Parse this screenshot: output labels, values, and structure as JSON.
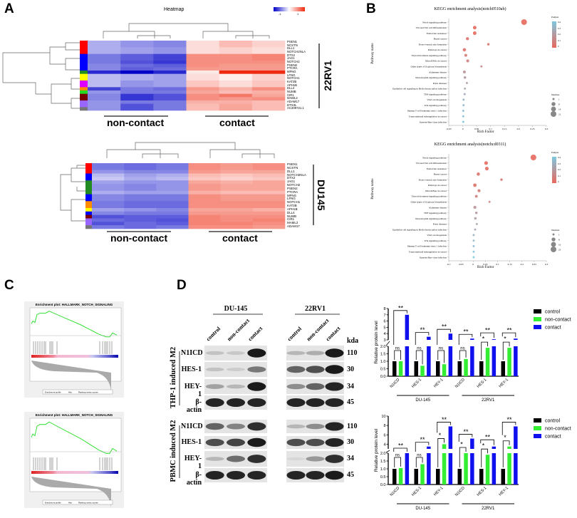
{
  "panel_labels": {
    "a": "A",
    "b": "B",
    "c": "C",
    "d": "D"
  },
  "heatmap_legend": {
    "title": "Heatmap",
    "low": "-1",
    "high": "1",
    "low_color": "#0000c8",
    "mid_color": "#ffffff",
    "high_color": "#ee2a10"
  },
  "gsea": {
    "plots": [
      {
        "title": "Enrichment plot: HALLMARK_NOTCH_SIGNALING",
        "legend": [
          "Enrichment profile",
          "Hits",
          "Ranking metric scores"
        ]
      },
      {
        "title": "Enrichment plot: HALLMARK_NOTCH_SIGNALING",
        "legend": [
          "Enrichment profile",
          "Hits",
          "Ranking metric scores"
        ]
      }
    ],
    "curve_color": "#22dd22"
  },
  "western": {
    "cell_lines": [
      "DU-145",
      "22RV1"
    ],
    "lanes": [
      "control",
      "non-contact",
      "contact"
    ],
    "kda_label": "kda",
    "blocks": [
      {
        "label": "THP-1 induced M2",
        "proteins": [
          "N1ICD",
          "HES-1",
          "HEY-1",
          "β-actin"
        ],
        "kda": [
          "110",
          "30",
          "34",
          "45"
        ],
        "band_intensity": [
          [
            0.15,
            0.12,
            0.95,
            0.2,
            0.25,
            0.95
          ],
          [
            0.15,
            0.1,
            0.5,
            0.6,
            0.7,
            0.95
          ],
          [
            0.3,
            0.2,
            0.95,
            0.4,
            0.6,
            0.9
          ],
          [
            0.9,
            0.9,
            0.9,
            0.9,
            0.9,
            0.9
          ]
        ]
      },
      {
        "label": "PBMC induced M2",
        "proteins": [
          "N1ICD",
          "HES-1",
          "HEY-1",
          "β-actin"
        ],
        "kda": [
          "110",
          "30",
          "34",
          "45"
        ],
        "band_intensity": [
          [
            0.6,
            0.45,
            0.85,
            0.2,
            0.4,
            0.9
          ],
          [
            0.7,
            0.75,
            0.95,
            0.7,
            0.7,
            0.9
          ],
          [
            0.2,
            0.55,
            0.85,
            0.05,
            0.35,
            0.85
          ],
          [
            0.9,
            0.9,
            0.9,
            0.9,
            0.9,
            0.95
          ]
        ]
      }
    ]
  },
  "chart_data": [
    {
      "type": "heatmap",
      "title": "Heatmap",
      "cell_line": "22RV1",
      "group_labels": [
        "non-contact",
        "contact"
      ],
      "genes": [
        "PSEN1",
        "NCSTN",
        "DLL1",
        "NOTCH2NLA",
        "DTX2",
        "JAG1",
        "NOTCH2",
        "PSEN2",
        "PTCRA",
        "MFNG",
        "LFNG",
        "NOTCH1",
        "KAT2B",
        "APH1B",
        "DLL4",
        "NUMB",
        "CIR1",
        "MAML2",
        "ADAM17",
        "DTX3L",
        "AC209721.1"
      ],
      "cluster_colors": [
        "#ff0000",
        "#ff0000",
        "#ff0000",
        "#ff0000",
        "#0000ff",
        "#0000ff",
        "#0000ff",
        "#0000ff",
        "#0000ff",
        "#228b22",
        "#ffff00",
        "#ffff00",
        "#dd00ff",
        "#dd00ff",
        "#ff8c00",
        "#22dd22",
        "#7a0000",
        "#7a0000",
        "#9966ff",
        "#9966ff",
        "#777777"
      ],
      "values": [
        [
          -0.6,
          -0.8,
          -0.9,
          0.3,
          0.6,
          0.4
        ],
        [
          -0.6,
          -0.8,
          -0.9,
          0.3,
          0.6,
          0.4
        ],
        [
          -0.6,
          -0.7,
          -0.8,
          0.3,
          0.4,
          0.3
        ],
        [
          -0.6,
          -0.7,
          -0.8,
          0.3,
          0.4,
          0.3
        ],
        [
          -1.0,
          -1.2,
          -1.4,
          1.0,
          1.0,
          1.1
        ],
        [
          -1.0,
          -1.2,
          -1.4,
          1.0,
          1.0,
          1.1
        ],
        [
          -1.0,
          -1.3,
          -1.5,
          1.0,
          1.0,
          1.0
        ],
        [
          -0.9,
          -1.1,
          -1.2,
          1.0,
          0.9,
          0.9
        ],
        [
          -0.9,
          -1.2,
          -1.1,
          0.9,
          0.9,
          0.9
        ],
        [
          -1.6,
          -1.9,
          -1.6,
          0.2,
          1.9,
          1.9
        ],
        [
          -0.5,
          -0.6,
          -0.7,
          0.3,
          0.15,
          0.4
        ],
        [
          -0.5,
          -0.6,
          -0.7,
          0.3,
          0.15,
          0.4
        ],
        [
          -0.5,
          -0.8,
          -0.7,
          0.5,
          0.3,
          0.5
        ],
        [
          -0.5,
          -0.8,
          -0.7,
          0.5,
          0.3,
          0.5
        ],
        [
          -1.4,
          -1.0,
          -1.1,
          0.9,
          0.7,
          1.0
        ],
        [
          -0.8,
          -1.0,
          -1.0,
          0.8,
          0.6,
          0.7
        ],
        [
          -0.9,
          -1.5,
          -1.3,
          1.0,
          1.2,
          0.8
        ],
        [
          -0.9,
          -1.5,
          -1.3,
          1.0,
          0.9,
          1.0
        ],
        [
          -0.8,
          -1.0,
          -1.0,
          0.7,
          0.7,
          0.6
        ],
        [
          -0.8,
          -1.3,
          -1.0,
          0.6,
          0.8,
          0.6
        ],
        [
          -0.8,
          -1.3,
          -1.0,
          0.6,
          0.8,
          0.6
        ]
      ]
    },
    {
      "type": "heatmap",
      "cell_line": "DU145",
      "group_labels": [
        "non-contact",
        "contact"
      ],
      "genes": [
        "PSEN1",
        "NCSTN",
        "DLL1",
        "NOTCH2NLA",
        "DTX2",
        "JAG1",
        "NOTCH2",
        "PSEN2",
        "PTCRA",
        "MFNG",
        "LFNG",
        "NOTCH1",
        "KAT2B",
        "APH1B",
        "DLL4",
        "NUMB",
        "CIR1",
        "MAML2",
        "ADAM17"
      ],
      "cluster_colors": [
        "#ff0000",
        "#ff0000",
        "#ff0000",
        "#0000ff",
        "#0000ff",
        "#228b22",
        "#228b22",
        "#228b22",
        "#228b22",
        "#0000ff",
        "#0000ff",
        "#ff8c00",
        "#ff8c00",
        "#ffff00",
        "#0000ff",
        "#7a0000",
        "#9966ff",
        "#9966ff",
        "#777777"
      ],
      "values": [
        [
          -1.0,
          -1.1,
          -1.0,
          1.0,
          0.9,
          1.0
        ],
        [
          -1.0,
          -1.1,
          -1.0,
          1.0,
          0.9,
          1.0
        ],
        [
          -0.8,
          -0.9,
          -0.9,
          0.9,
          0.8,
          0.8
        ],
        [
          -0.5,
          -0.7,
          -0.6,
          0.6,
          0.5,
          0.6
        ],
        [
          -0.4,
          -0.6,
          -0.5,
          0.5,
          0.4,
          0.5
        ],
        [
          -0.7,
          -0.8,
          -0.8,
          0.8,
          0.7,
          0.8
        ],
        [
          -0.8,
          -0.9,
          -0.8,
          0.9,
          0.8,
          0.8
        ],
        [
          -0.8,
          -0.9,
          -0.8,
          0.9,
          0.8,
          0.8
        ],
        [
          -0.6,
          -0.7,
          -0.7,
          0.7,
          0.6,
          0.6
        ],
        [
          -0.9,
          -1.0,
          -1.0,
          1.0,
          0.9,
          0.9
        ],
        [
          -0.9,
          -1.0,
          -1.0,
          1.0,
          0.9,
          0.9
        ],
        [
          -1.0,
          -1.1,
          -1.1,
          1.0,
          1.0,
          1.0
        ],
        [
          -1.0,
          -1.1,
          -1.1,
          1.0,
          1.0,
          1.0
        ],
        [
          -0.7,
          -0.8,
          -0.9,
          0.8,
          0.8,
          0.7
        ],
        [
          -0.9,
          -1.0,
          -1.0,
          0.9,
          0.9,
          0.9
        ],
        [
          -1.3,
          -1.2,
          -1.2,
          1.1,
          1.0,
          1.0
        ],
        [
          -1.1,
          -1.2,
          -1.3,
          1.1,
          1.0,
          1.1
        ],
        [
          -1.3,
          -1.1,
          -1.2,
          1.1,
          1.1,
          1.0
        ],
        [
          -1.0,
          -1.1,
          -1.0,
          1.0,
          1.0,
          0.9
        ]
      ]
    },
    {
      "type": "scatter",
      "title": "KEGG enrichment analysis(notch0510ab)",
      "xlabel": "Rich Factor",
      "ylabel": "Pathway name",
      "xlim": [
        -0.05,
        0.3
      ],
      "xticks": [
        "-0.05",
        "0",
        "0.05",
        "0.1",
        "0.15",
        "0.2",
        "0.25",
        "0.3"
      ],
      "xtick_values": [
        -0.05,
        0,
        0.05,
        0.1,
        0.15,
        0.2,
        0.25,
        0.3
      ],
      "color_legend": {
        "title": "Padjust",
        "ticks": [
          "0.4",
          "0.3",
          "0.2",
          "0.1",
          "0"
        ],
        "low_color": "#e8685c",
        "high_color": "#7ec8e0"
      },
      "size_legend": {
        "title": "Number",
        "ticks": [
          "1",
          "8",
          "14",
          "21"
        ],
        "values": [
          1,
          8,
          14,
          21
        ]
      },
      "pathways": [
        "Notch signaling pathway",
        "Th1 and Th2 cell differentiation",
        "Endocrine resistance",
        "Breast cancer",
        "Dorso-ventral axis formation",
        "Pathways in cancer",
        "Thyroid hormone signaling pathway",
        "MicroRNAs in cancer",
        "Other types of O-glycan biosynthesis",
        "Alzheimer disease",
        "Neurotrophin signaling pathway",
        "Prion diseases",
        "Epithelial cell signaling in Helicobacter pylori infection",
        "TNF signaling pathway",
        "Viral carcinogenesis",
        "Wnt signaling pathway",
        "Human T-cell leukemia virus 1 infection",
        "Transcriptional misregulation in cancer",
        "Epstein-Barr virus infection"
      ],
      "rich_factor": [
        0.22,
        0.043,
        0.043,
        0.017,
        0.092,
        0.006,
        0.011,
        0.018,
        0.067,
        0.006,
        0.008,
        0.015,
        0.008,
        0.007,
        0.003,
        0.003,
        0.002,
        0.002,
        0.002
      ],
      "number": [
        21,
        6,
        6,
        4,
        2,
        5,
        3,
        3,
        1,
        3,
        2,
        1,
        1,
        1,
        1,
        1,
        1,
        1,
        1
      ],
      "padjust": [
        0,
        0.01,
        0.01,
        0.05,
        0.08,
        0.05,
        0.1,
        0.12,
        0.15,
        0.2,
        0.22,
        0.25,
        0.28,
        0.3,
        0.35,
        0.38,
        0.4,
        0.42,
        0.45
      ]
    },
    {
      "type": "scatter",
      "title": "KEGG enrichment analysis(notchcd0311)",
      "xlabel": "Rich Factor",
      "ylabel": "Pathway name",
      "xlim": [
        -0.1,
        0.3
      ],
      "xticks": [
        "-0.1",
        "-0.05",
        "0",
        "0.05",
        "0.1",
        "0.15",
        "0.2",
        "0.25",
        "0.3"
      ],
      "xtick_values": [
        -0.1,
        -0.05,
        0,
        0.05,
        0.1,
        0.15,
        0.2,
        0.25,
        0.3
      ],
      "color_legend": {
        "title": "Padjust",
        "ticks": [
          "0.4",
          "0.3",
          "0.2",
          "0.1",
          "0"
        ],
        "low_color": "#e8685c",
        "high_color": "#7ec8e0"
      },
      "size_legend": {
        "title": "Number",
        "ticks": [
          "1",
          "8",
          "16",
          "23"
        ],
        "values": [
          1,
          8,
          16,
          23
        ]
      },
      "pathways": [
        "Notch signaling pathway",
        "Th1 and Th2 cell differentiation",
        "Endocrine resistance",
        "Breast cancer",
        "Dorso-ventral axis formation",
        "Pathways in cancer",
        "MicroRNAs in cancer",
        "Thyroid hormone signaling pathway",
        "Other types of O-glycan biosynthesis",
        "Alzheimer disease",
        "TNF signaling pathway",
        "Neurotrophin signaling pathway",
        "Prion diseases",
        "Epithelial cell signaling in Helicobacter pylori infection",
        "Viral carcinogenesis",
        "Wnt signaling pathway",
        "Human T-cell leukemia virus 1 infection",
        "Transcriptional misregulation in cancer",
        "Epstein-Barr virus infection"
      ],
      "rich_factor": [
        0.247,
        0.053,
        0.056,
        0.021,
        0.116,
        0.007,
        0.024,
        0.013,
        0.067,
        0.007,
        0.013,
        0.009,
        0.015,
        0.008,
        0.002,
        0.002,
        0.002,
        0.002,
        0.002
      ],
      "number": [
        23,
        7,
        7,
        5,
        2,
        6,
        4,
        3,
        1,
        4,
        2,
        2,
        1,
        1,
        1,
        1,
        1,
        1,
        1
      ],
      "padjust": [
        0,
        0.01,
        0.01,
        0.05,
        0.08,
        0.05,
        0.1,
        0.12,
        0.15,
        0.2,
        0.22,
        0.25,
        0.28,
        0.3,
        0.35,
        0.38,
        0.4,
        0.42,
        0.45
      ]
    },
    {
      "type": "bar",
      "ylabel": "Relative protein level",
      "categories": [
        "N1ICD",
        "HES-1",
        "HEY-1",
        "N1ICD",
        "HES-1",
        "HEY-1"
      ],
      "category_groups": [
        {
          "label": "DU-145",
          "span": [
            0,
            2
          ]
        },
        {
          "label": "22RV1",
          "span": [
            3,
            5
          ]
        }
      ],
      "y_break": {
        "lower": [
          0,
          2.0
        ],
        "upper": [
          3,
          8
        ]
      },
      "yticks_lower": [
        "0.0",
        "0.5",
        "1.0",
        "1.5",
        "2.0"
      ],
      "yticks_upper": [
        "3",
        "4",
        "5",
        "6",
        "7",
        "8"
      ],
      "series": [
        {
          "name": "control",
          "color": "#000000",
          "values": [
            1,
            1,
            1,
            1,
            1,
            1
          ]
        },
        {
          "name": "non-contact",
          "color": "#33ee33",
          "values": [
            1.0,
            0.7,
            0.8,
            1.15,
            1.9,
            1.9
          ]
        },
        {
          "name": "contact",
          "color": "#1010ee",
          "values": [
            7.0,
            3.5,
            4.0,
            3.2,
            3.1,
            3.2
          ]
        }
      ],
      "significance": {
        "control_vs_noncontact": [
          "ns",
          "ns",
          "ns",
          "ns",
          "*",
          "*"
        ],
        "control_vs_contact": [
          "**",
          "**",
          "**",
          "**",
          "**",
          "**"
        ]
      },
      "legend_position": "right"
    },
    {
      "type": "bar",
      "ylabel": "Relative protein level",
      "categories": [
        "N1ICD",
        "HES-1",
        "HEY-1",
        "N1ICD",
        "HES-1",
        "HEY-1"
      ],
      "category_groups": [
        {
          "label": "DU-145",
          "span": [
            0,
            2
          ]
        },
        {
          "label": "22RV1",
          "span": [
            3,
            5
          ]
        }
      ],
      "y_break": {
        "lower": [
          0,
          2.0
        ],
        "upper": [
          3,
          10
        ]
      },
      "yticks_lower": [
        "0.0",
        "0.5",
        "1.0",
        "1.5",
        "2.0"
      ],
      "yticks_upper": [
        "4",
        "6",
        "8",
        "10"
      ],
      "series": [
        {
          "name": "control",
          "color": "#000000",
          "values": [
            1,
            1,
            1,
            1,
            1,
            1
          ]
        },
        {
          "name": "non-contact",
          "color": "#33ee33",
          "values": [
            1.05,
            1.3,
            4.0,
            2.0,
            1.9,
            3.5
          ]
        },
        {
          "name": "contact",
          "color": "#1010ee",
          "values": [
            2.0,
            3.5,
            7.8,
            5.2,
            3.5,
            7.8
          ]
        }
      ],
      "significance": {
        "control_vs_noncontact": [
          "ns",
          "ns",
          "*",
          "*",
          "*",
          "*"
        ],
        "control_vs_contact": [
          "**",
          "**",
          "**",
          "**",
          "**",
          "**"
        ]
      },
      "legend_position": "right"
    }
  ]
}
